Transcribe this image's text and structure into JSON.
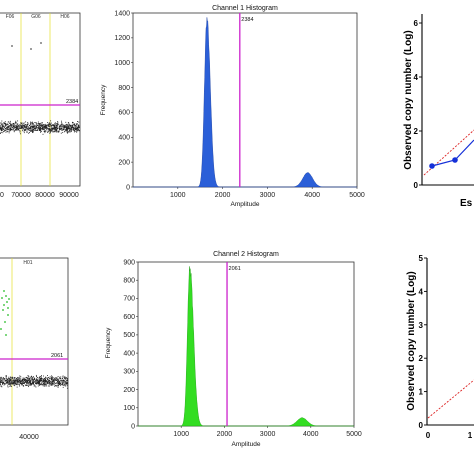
{
  "chart_data": [
    {
      "type": "scatter",
      "panel": "top-left",
      "x_ticks": [
        "0",
        "70000",
        "80000",
        "90000"
      ],
      "well_labels": [
        "F06",
        "G06",
        "H06"
      ],
      "threshold_label": "2384",
      "colors": {
        "positive": "#1f4fd0",
        "negative": "#222222",
        "threshold": "#cc22cc",
        "well_line": "#e6e02a"
      }
    },
    {
      "type": "area",
      "panel": "top-middle",
      "title": "Channel 1 Histogram",
      "xlabel": "Amplitude",
      "ylabel": "Frequency",
      "xlim": [
        0,
        5000
      ],
      "ylim": [
        0,
        1400
      ],
      "x_ticks": [
        "1000",
        "2000",
        "3000",
        "4000",
        "5000"
      ],
      "y_ticks": [
        "0",
        "200",
        "400",
        "600",
        "800",
        "1000",
        "1200",
        "1400"
      ],
      "threshold": 2384,
      "threshold_label": "2384",
      "peaks": [
        {
          "center": 1650,
          "height": 1350,
          "width_left": 55,
          "width_right": 75
        },
        {
          "center": 3900,
          "height": 115,
          "width_left": 110,
          "width_right": 110
        }
      ],
      "colors": {
        "fill": "#2b5fd8",
        "edge": "#1a3fa0",
        "threshold": "#cc22cc"
      }
    },
    {
      "type": "line",
      "panel": "top-right",
      "ylabel": "Observed copy number (Log)",
      "xlabel": "Es",
      "y_ticks": [
        "0",
        "2",
        "4",
        "6"
      ],
      "ylim": [
        0,
        6
      ],
      "colors": {
        "series": "#1530d8",
        "fit": "#dd2222"
      }
    },
    {
      "type": "scatter",
      "panel": "bottom-left",
      "x_ticks": [
        "40000"
      ],
      "well_labels": [
        "H01"
      ],
      "threshold_label": "2061",
      "colors": {
        "positive": "#22bb22",
        "negative": "#222222",
        "threshold": "#cc22cc",
        "well_line": "#e6e02a"
      }
    },
    {
      "type": "area",
      "panel": "bottom-middle",
      "title": "Channel 2 Histogram",
      "xlabel": "Amplitude",
      "ylabel": "Frequency",
      "xlim": [
        0,
        5000
      ],
      "ylim": [
        0,
        900
      ],
      "x_ticks": [
        "1000",
        "2000",
        "3000",
        "4000",
        "5000"
      ],
      "y_ticks": [
        "0",
        "100",
        "200",
        "300",
        "400",
        "500",
        "600",
        "700",
        "800",
        "900"
      ],
      "threshold": 2061,
      "threshold_label": "2061",
      "peaks": [
        {
          "center": 1200,
          "height": 870,
          "width_left": 55,
          "width_right": 85
        },
        {
          "center": 3800,
          "height": 45,
          "width_left": 120,
          "width_right": 120
        }
      ],
      "colors": {
        "fill": "#33dd22",
        "edge": "#1a9910",
        "threshold": "#cc22cc"
      }
    },
    {
      "type": "line",
      "panel": "bottom-right",
      "ylabel": "Observed copy number (Log)",
      "x_ticks": [
        "0",
        "1"
      ],
      "y_ticks": [
        "0",
        "1",
        "2",
        "3",
        "4",
        "5"
      ],
      "ylim": [
        0,
        5
      ],
      "colors": {
        "fit": "#dd2222"
      }
    }
  ]
}
